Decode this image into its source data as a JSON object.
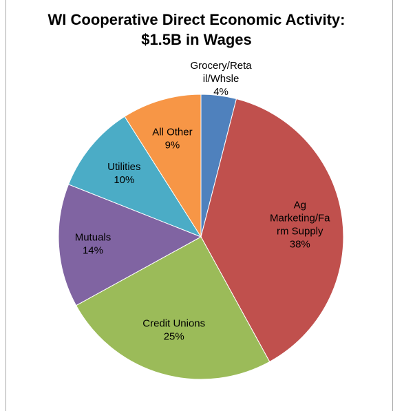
{
  "chart_data": {
    "type": "pie",
    "title_lines": [
      "WI Cooperative Direct Economic Activity:",
      "$1.5B in Wages"
    ],
    "slices": [
      {
        "name": "Grocery/Retail/Whsle",
        "label_lines": [
          "Grocery/Reta",
          "il/Whsle"
        ],
        "value": 4,
        "value_label": "4%",
        "color": "#4f81bd"
      },
      {
        "name": "Ag Marketing/Farm Supply",
        "label_lines": [
          "Ag",
          "Marketing/Fa",
          "rm Supply"
        ],
        "value": 38,
        "value_label": "38%",
        "color": "#c0504d"
      },
      {
        "name": "Credit Unions",
        "label_lines": [
          "Credit Unions"
        ],
        "value": 25,
        "value_label": "25%",
        "color": "#9bbb59"
      },
      {
        "name": "Mutuals",
        "label_lines": [
          "Mutuals"
        ],
        "value": 14,
        "value_label": "14%",
        "color": "#8064a2"
      },
      {
        "name": "Utilities",
        "label_lines": [
          "Utilities"
        ],
        "value": 10,
        "value_label": "10%",
        "color": "#4bacc6"
      },
      {
        "name": "All Other",
        "label_lines": [
          "All Other"
        ],
        "value": 9,
        "value_label": "9%",
        "color": "#f79646"
      }
    ],
    "legend": "none",
    "start_position": "12 o'clock",
    "direction": "clockwise"
  }
}
